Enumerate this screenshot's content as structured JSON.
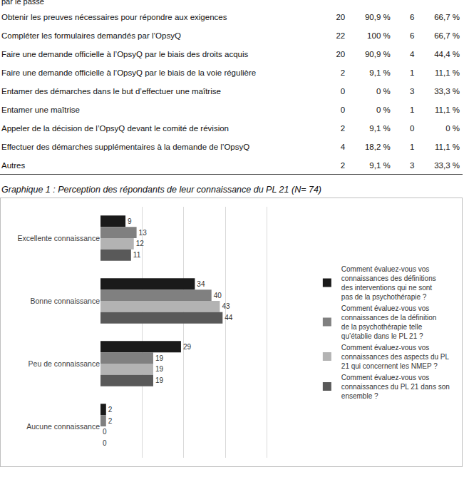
{
  "table": {
    "fragment": "par le passé",
    "rows": [
      [
        "Obtenir les preuves nécessaires pour répondre aux exigences",
        "20",
        "90,9 %",
        "6",
        "66,7 %"
      ],
      [
        "Compléter les formulaires demandés par l’OpsyQ",
        "22",
        "100 %",
        "6",
        "66,7 %"
      ],
      [
        "Faire une demande officielle à l’OpsyQ par le biais des droits acquis",
        "20",
        "90,9 %",
        "4",
        "44,4 %"
      ],
      [
        "Faire une demande officielle à l’OpsyQ par le biais de la voie régulière",
        "2",
        "9,1 %",
        "1",
        "11,1 %"
      ],
      [
        "Entamer des démarches dans le but d’effectuer une maîtrise",
        "0",
        "0 %",
        "3",
        "33,3 %"
      ],
      [
        "Entamer une maîtrise",
        "0",
        "0 %",
        "1",
        "11,1 %"
      ],
      [
        "Appeler de la décision de l’OpsyQ devant le comité de révision",
        "2",
        "9,1 %",
        "0",
        "0 %"
      ],
      [
        "Effectuer des démarches supplémentaires à la demande de l’OpsyQ",
        "4",
        "18,2 %",
        "1",
        "11,1 %"
      ],
      [
        "Autres",
        "2",
        "9,1 %",
        "3",
        "33,3 %"
      ]
    ]
  },
  "chart_data": {
    "type": "bar",
    "title": "Graphique 1 : Perception des répondants de leur connaissance du PL 21 (N= 74)",
    "orientation": "horizontal",
    "categories": [
      "Excellente connaissance",
      "Bonne connaissance",
      "Peu de connaissance",
      "Aucune connaissance"
    ],
    "series": [
      {
        "name": "Comment évaluez-vous vos connaissances des définitions des interventions qui ne sont pas de la psychothérapie ?",
        "color": "#1a1a1a",
        "values": [
          9,
          34,
          29,
          2
        ]
      },
      {
        "name": "Comment évaluez-vous vos connaissances de la définition de la psychothérapie telle qu’établie dans le PL 21 ?",
        "color": "#808080",
        "values": [
          13,
          40,
          19,
          2
        ]
      },
      {
        "name": "Comment évaluez-vous vos connaissances des aspects du PL 21 qui concernent les NMEP ?",
        "color": "#b3b3b3",
        "values": [
          12,
          43,
          19,
          0
        ]
      },
      {
        "name": "Comment évaluez-vous vos connaissances du PL 21 dans son ensemble ?",
        "color": "#595959",
        "values": [
          11,
          44,
          19,
          0
        ]
      }
    ],
    "xlim": [
      0,
      75
    ],
    "xticks": [
      0,
      15,
      30,
      45,
      60,
      75
    ],
    "grid": true,
    "legend": "right",
    "data_labels": true,
    "tick_labels": "y"
  }
}
